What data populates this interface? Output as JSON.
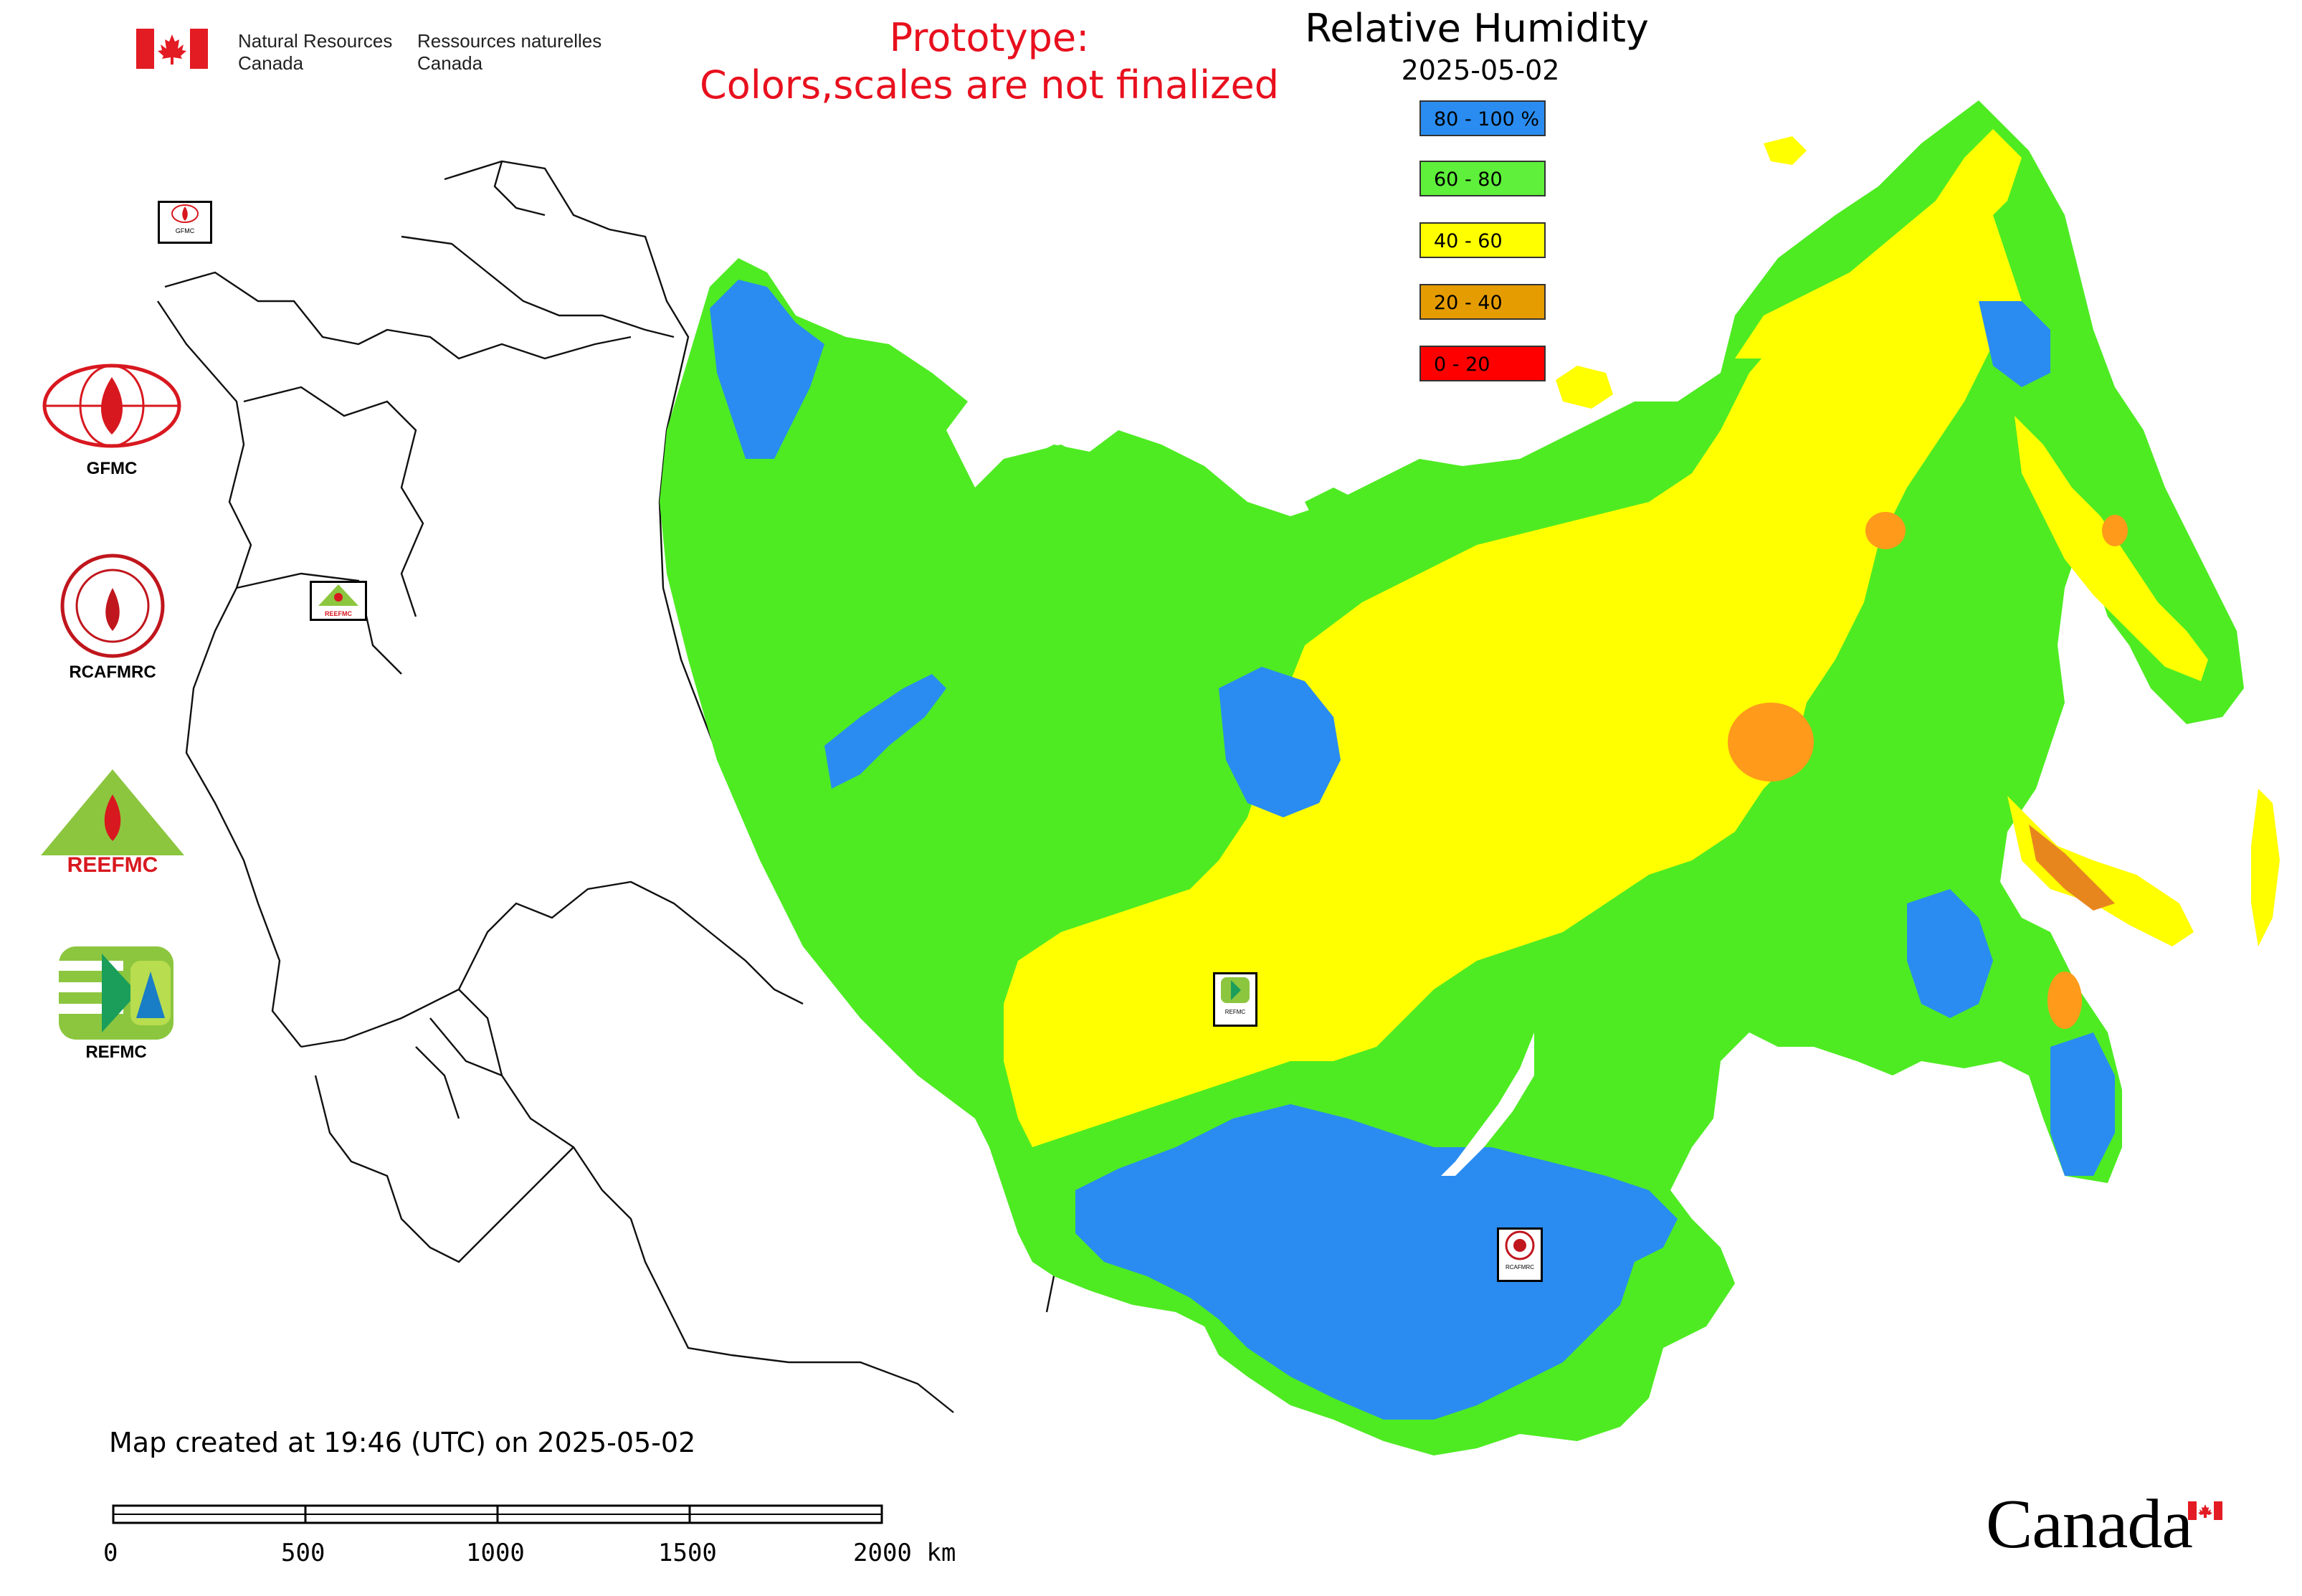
{
  "header": {
    "agency_en_line1": "Natural Resources",
    "agency_en_line2": "Canada",
    "agency_fr_line1": "Ressources naturelles",
    "agency_fr_line2": "Canada"
  },
  "prototype_notice": {
    "line1": "Prototype:",
    "line2": "Colors,scales are not finalized"
  },
  "map": {
    "title": "Relative Humidity",
    "date": "2025-05-02"
  },
  "legend": {
    "items": [
      {
        "label": "80 - 100 %",
        "color": "#2a8cf0"
      },
      {
        "label": "60 - 80",
        "color": "#5ef03a"
      },
      {
        "label": "40 - 60",
        "color": "#ffff00"
      },
      {
        "label": "20 - 40",
        "color": "#e59c00"
      },
      {
        "label": "0 - 20",
        "color": "#ff0000"
      }
    ]
  },
  "organizations": [
    {
      "name": "GFMC"
    },
    {
      "name": "RCAFMRC"
    },
    {
      "name": "REEFMC"
    },
    {
      "name": "REFMC"
    }
  ],
  "map_badges": {
    "gfmc_small": "GFMC",
    "reefmc_small": "REEFMC",
    "refmc_small": "REFMC",
    "rcafmrc_small": "RCAFMRC"
  },
  "footer": {
    "created": "Map created at 19:46 (UTC) on 2025-05-02",
    "scale_labels": [
      "0",
      "500",
      "1000",
      "1500",
      "2000 km"
    ],
    "wordmark": "Canada"
  }
}
